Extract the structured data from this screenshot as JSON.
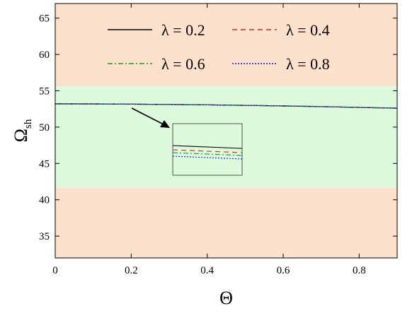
{
  "chart_data": {
    "type": "line",
    "title": "",
    "xlabel": "Θ",
    "ylabel_main": "Ω",
    "ylabel_sub": "sh",
    "xlim": [
      0,
      0.9
    ],
    "ylim": [
      32,
      67
    ],
    "x_ticks": [
      0,
      0.2,
      0.4,
      0.6,
      0.8
    ],
    "x_tick_labels": [
      "0",
      "0.2",
      "0.4",
      "0.6",
      "0.8"
    ],
    "y_ticks": [
      35,
      40,
      45,
      50,
      55,
      60,
      65
    ],
    "y_tick_labels": [
      "35",
      "40",
      "45",
      "50",
      "55",
      "60",
      "65"
    ],
    "grid": false,
    "legend_position": "top",
    "bands": [
      {
        "y_from": 32,
        "y_to": 41.7,
        "color": "#fce1cc"
      },
      {
        "y_from": 41.7,
        "y_to": 55.6,
        "color": "#dcfbdc"
      },
      {
        "y_from": 55.6,
        "y_to": 67,
        "color": "#fce1cc"
      }
    ],
    "x": [
      0,
      0.1,
      0.2,
      0.3,
      0.4,
      0.5,
      0.6,
      0.7,
      0.8,
      0.9
    ],
    "series": [
      {
        "name": "λ = 0.2",
        "color": "#000000",
        "dash": "",
        "values": [
          53.2,
          53.19,
          53.16,
          53.11,
          53.06,
          52.99,
          52.91,
          52.82,
          52.71,
          52.6
        ]
      },
      {
        "name": "λ = 0.4",
        "color": "#e02020",
        "dash": "7,5",
        "values": [
          53.2,
          53.19,
          53.16,
          53.11,
          53.06,
          52.99,
          52.91,
          52.82,
          52.71,
          52.6
        ]
      },
      {
        "name": "λ = 0.6",
        "color": "#1a9a1a",
        "dash": "7,3,2,3",
        "values": [
          53.2,
          53.19,
          53.16,
          53.11,
          53.06,
          52.99,
          52.91,
          52.82,
          52.71,
          52.6
        ]
      },
      {
        "name": "λ = 0.8",
        "color": "#1a1ae0",
        "dash": "2,2",
        "values": [
          53.2,
          53.19,
          53.16,
          53.11,
          53.06,
          52.99,
          52.91,
          52.82,
          52.71,
          52.6
        ]
      }
    ],
    "annotation": "zoomed inset of the curves near Θ = 0.2"
  }
}
